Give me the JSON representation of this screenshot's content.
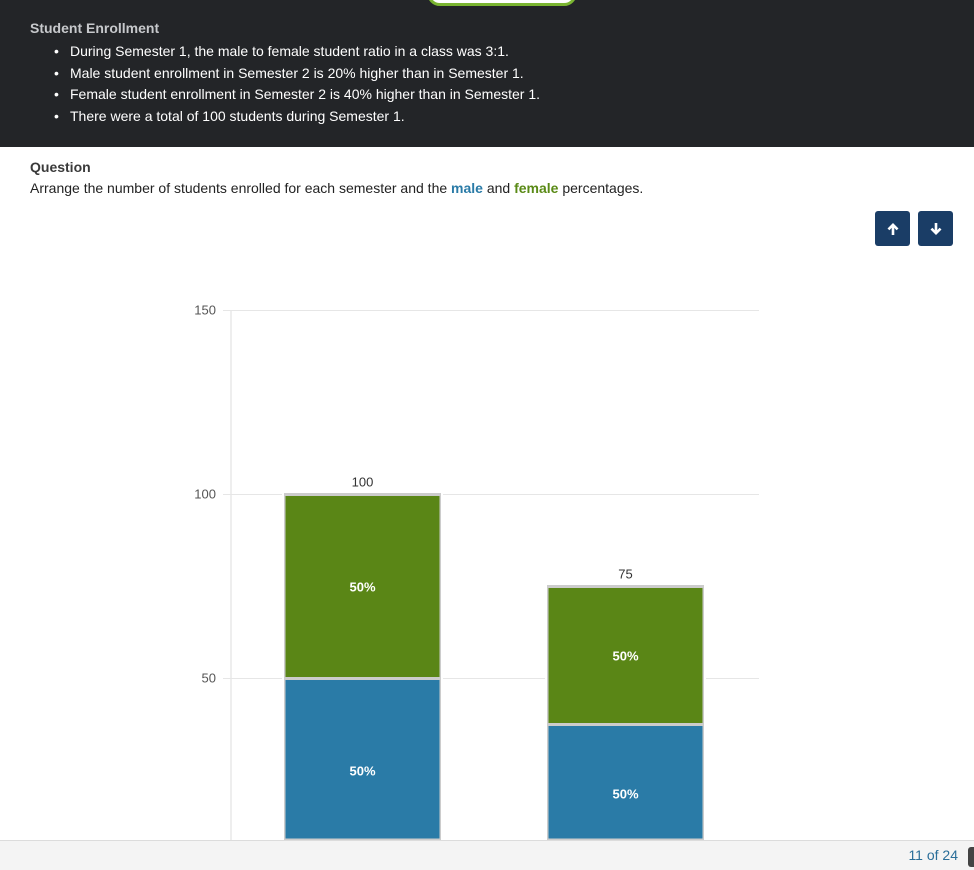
{
  "header": {
    "title": "Student Enrollment",
    "bullets": [
      "During Semester 1, the male to female student ratio in a class was 3:1.",
      "Male student enrollment in Semester 2 is 20% higher than in Semester 1.",
      "Female student enrollment in Semester 2 is 40% higher than in Semester 1.",
      "There were a total of 100 students during Semester 1."
    ]
  },
  "question": {
    "label": "Question",
    "text_before": "Arrange the number of students enrolled for each semester and the ",
    "male_word": "male",
    "text_and": " and ",
    "female_word": "female",
    "text_after": " percentages."
  },
  "controls": {
    "up_icon": "arrow-up-icon",
    "down_icon": "arrow-down-icon"
  },
  "colors": {
    "male": "#2a7ba7",
    "female": "#5a8616",
    "header_bg": "#232528",
    "button_bg": "#1a3d66"
  },
  "chart_data": {
    "type": "bar",
    "stacked": true,
    "ylim": [
      0,
      150
    ],
    "yticks": [
      50,
      100,
      150
    ],
    "grid": true,
    "bars": [
      {
        "total": 100,
        "total_label": "100",
        "female_value": 50,
        "male_label": "50%",
        "female_label": "50%"
      },
      {
        "total": 75,
        "total_label": "75",
        "female_value": 37.5,
        "male_label": "50%",
        "female_label": "50%"
      }
    ]
  },
  "footer": {
    "page_count": "11 of 24"
  }
}
